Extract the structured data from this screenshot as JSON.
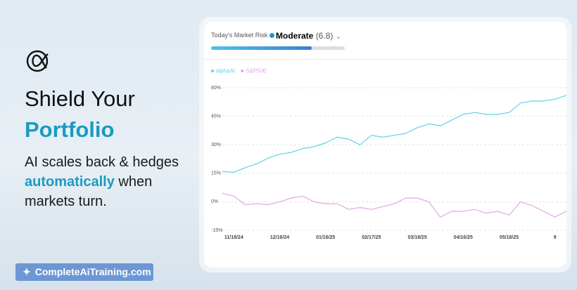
{
  "hero": {
    "title_line1": "Shield Your",
    "title_line2": "Portfolio",
    "sub_line1": "AI scales back & hedges",
    "sub_highlight": "automatically",
    "sub_after": "when",
    "sub_line3": "markets turn."
  },
  "badge": {
    "label": "CompleteAiTraining.com"
  },
  "risk": {
    "label": "Today's Market Risk",
    "level": "Moderate",
    "score": "(6.8)"
  },
  "chart_data": {
    "type": "line",
    "categories": [
      null,
      "11/18/24",
      null,
      null,
      null,
      "12/16/24",
      null,
      null,
      null,
      "01/16/25",
      null,
      null,
      null,
      "02/17/25",
      null,
      null,
      null,
      "03/18/25",
      null,
      null,
      null,
      "04/16/25",
      null,
      null,
      null,
      "05/18/25",
      null,
      null,
      null,
      "9",
      null
    ],
    "series": [
      {
        "name": "alphaAI",
        "color": "#5fd0ee",
        "values": [
          16,
          15.5,
          18,
          20,
          23,
          25,
          26,
          28,
          29,
          31,
          34,
          33,
          30,
          35,
          34,
          35,
          36,
          39,
          41,
          40,
          43,
          46,
          47,
          46,
          46,
          47,
          52,
          53,
          53,
          54,
          56
        ]
      },
      {
        "name": "S&P500",
        "color": "#e2a6e6",
        "values": [
          4.5,
          3,
          -1.5,
          -1,
          -1.5,
          0,
          2,
          3,
          0,
          -1,
          -1,
          -4,
          -3,
          -4,
          -2.5,
          -1,
          2,
          2,
          0,
          -8,
          -5,
          -5,
          -4,
          -6,
          -5,
          -7,
          0,
          -2,
          -5,
          -8,
          -5
        ]
      }
    ],
    "ylim": [
      -15,
      60
    ],
    "yticks": [
      {
        "value": -15,
        "label": "-15%"
      },
      {
        "value": 0,
        "label": "0%"
      },
      {
        "value": 15,
        "label": "15%"
      },
      {
        "value": 30,
        "label": "30%"
      },
      {
        "value": 45,
        "label": "45%"
      },
      {
        "value": 60,
        "label": "60%"
      }
    ],
    "grid": true
  }
}
